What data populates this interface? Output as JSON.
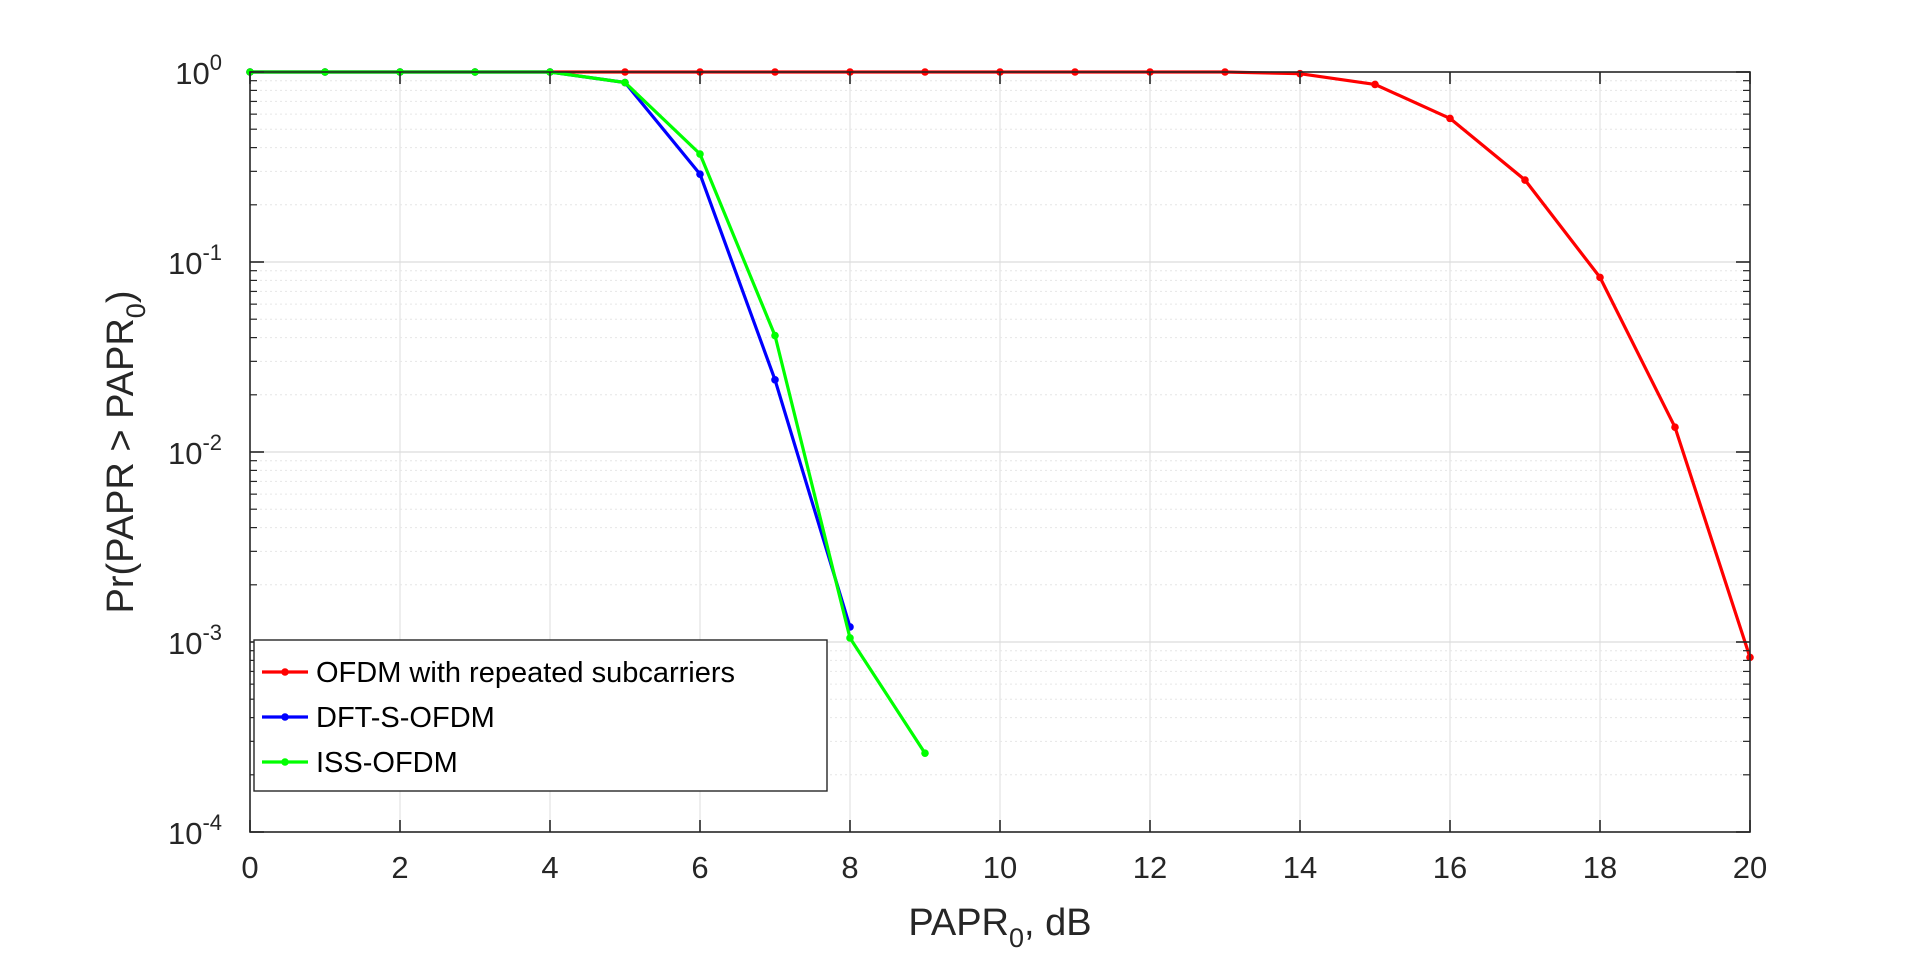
{
  "chart_data": {
    "type": "line",
    "title": "",
    "xlabel": {
      "main": "PAPR",
      "sub": "0",
      "suffix": ", dB"
    },
    "ylabel": {
      "main": "Pr(PAPR > PAPR",
      "sub": "0",
      "suffix": ")"
    },
    "xlim": [
      0,
      20
    ],
    "ylim": [
      0.0001,
      1
    ],
    "yscale": "log",
    "grid": true,
    "x_ticks": [
      0,
      2,
      4,
      6,
      8,
      10,
      12,
      14,
      16,
      18,
      20
    ],
    "x_tick_labels": [
      "0",
      "2",
      "4",
      "6",
      "8",
      "10",
      "12",
      "14",
      "16",
      "18",
      "20"
    ],
    "y_ticks": [
      {
        "value": 1,
        "base": "10",
        "exp": "0"
      },
      {
        "value": 0.1,
        "base": "10",
        "exp": "-1"
      },
      {
        "value": 0.01,
        "base": "10",
        "exp": "-2"
      },
      {
        "value": 0.001,
        "base": "10",
        "exp": "-3"
      },
      {
        "value": 0.0001,
        "base": "10",
        "exp": "-4"
      }
    ],
    "legend_position": "bottom-left",
    "series": [
      {
        "name": "OFDM with repeated subcarriers",
        "color": "#ff0000",
        "x": [
          0,
          1,
          2,
          3,
          4,
          5,
          6,
          7,
          8,
          9,
          10,
          11,
          12,
          13,
          14,
          15,
          16,
          17,
          18,
          19,
          20
        ],
        "y": [
          1,
          1,
          1,
          1,
          1,
          1,
          1,
          1,
          1,
          1,
          1,
          1,
          1,
          1,
          0.98,
          0.86,
          0.57,
          0.27,
          0.083,
          0.0135,
          0.00083
        ]
      },
      {
        "name": "DFT-S-OFDM",
        "color": "#0000ff",
        "x": [
          0,
          1,
          2,
          3,
          4,
          5,
          6,
          7,
          8
        ],
        "y": [
          1,
          1,
          1,
          1,
          1,
          0.88,
          0.29,
          0.024,
          0.0012
        ]
      },
      {
        "name": "ISS-OFDM",
        "color": "#00ff00",
        "x": [
          0,
          1,
          2,
          3,
          4,
          5,
          6,
          7,
          8,
          9
        ],
        "y": [
          1,
          1,
          1,
          1,
          1,
          0.88,
          0.37,
          0.041,
          0.00105,
          0.00026
        ]
      }
    ]
  }
}
